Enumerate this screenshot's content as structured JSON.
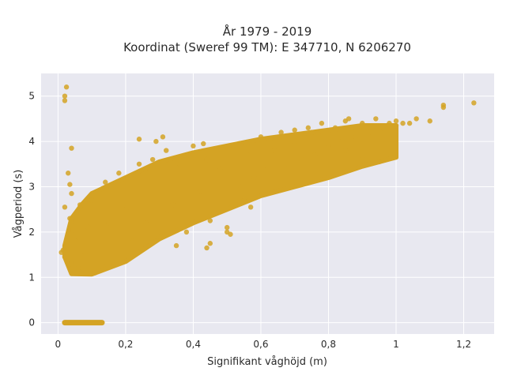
{
  "chart_data": {
    "type": "scatter",
    "title_lines": [
      "År 1979 - 2019",
      "Koordinat (Sweref 99 TM): E 347710, N 6206270"
    ],
    "xlabel": "Signifikant våghöjd (m)",
    "ylabel": "Vågperiod (s)",
    "xlim": [
      -0.05,
      1.29
    ],
    "ylim": [
      -0.25,
      5.5
    ],
    "x_ticks": [
      0,
      0.2,
      0.4,
      0.6,
      0.8,
      1,
      1.2
    ],
    "x_tick_labels": [
      "0",
      "0,2",
      "0,4",
      "0,6",
      "0,8",
      "1",
      "1,2"
    ],
    "y_ticks": [
      0,
      1,
      2,
      3,
      4,
      5
    ],
    "y_tick_labels": [
      "0",
      "1",
      "2",
      "3",
      "4",
      "5"
    ],
    "grid": true,
    "legend": "none",
    "colors": {
      "point": "#d4a324",
      "plot_bg": "#e8e8f0",
      "grid": "#ffffff",
      "text": "#2a2a2a"
    },
    "points": [
      [
        0.02,
        5.0
      ],
      [
        0.025,
        5.2
      ],
      [
        0.02,
        4.9
      ],
      [
        0.04,
        3.85
      ],
      [
        0.03,
        3.3
      ],
      [
        0.035,
        3.05
      ],
      [
        0.04,
        2.85
      ],
      [
        0.02,
        2.55
      ],
      [
        0.015,
        1.6
      ],
      [
        0.01,
        1.55
      ],
      [
        0.02,
        1.45
      ],
      [
        0.025,
        1.7
      ],
      [
        0.03,
        1.9
      ],
      [
        0.035,
        2.3
      ],
      [
        0.04,
        1.3
      ],
      [
        0.045,
        2.05
      ],
      [
        0.05,
        1.8
      ],
      [
        0.055,
        2.4
      ],
      [
        0.06,
        1.2
      ],
      [
        0.065,
        2.6
      ],
      [
        0.07,
        1.1
      ],
      [
        0.08,
        1.5
      ],
      [
        0.09,
        2.1
      ],
      [
        0.1,
        2.7
      ],
      [
        0.11,
        1.1
      ],
      [
        0.12,
        2.9
      ],
      [
        0.13,
        1.3
      ],
      [
        0.14,
        3.1
      ],
      [
        0.15,
        2.2
      ],
      [
        0.16,
        1.4
      ],
      [
        0.18,
        3.3
      ],
      [
        0.2,
        2.5
      ],
      [
        0.22,
        1.8
      ],
      [
        0.24,
        3.5
      ],
      [
        0.26,
        2.2
      ],
      [
        0.28,
        3.6
      ],
      [
        0.3,
        1.9
      ],
      [
        0.32,
        3.8
      ],
      [
        0.34,
        2.6
      ],
      [
        0.36,
        3.5
      ],
      [
        0.38,
        2.0
      ],
      [
        0.4,
        3.9
      ],
      [
        0.42,
        2.9
      ],
      [
        0.44,
        3.6
      ],
      [
        0.46,
        2.4
      ],
      [
        0.48,
        3.4
      ],
      [
        0.5,
        2.1
      ],
      [
        0.52,
        3.9
      ],
      [
        0.54,
        3.0
      ],
      [
        0.56,
        3.7
      ],
      [
        0.58,
        3.2
      ],
      [
        0.6,
        4.1
      ],
      [
        0.62,
        3.4
      ],
      [
        0.64,
        3.8
      ],
      [
        0.66,
        4.2
      ],
      [
        0.68,
        3.5
      ],
      [
        0.7,
        4.0
      ],
      [
        0.72,
        3.6
      ],
      [
        0.74,
        4.3
      ],
      [
        0.76,
        3.7
      ],
      [
        0.78,
        4.4
      ],
      [
        0.8,
        3.9
      ],
      [
        0.82,
        4.3
      ],
      [
        0.84,
        4.0
      ],
      [
        0.86,
        4.5
      ],
      [
        0.88,
        4.1
      ],
      [
        0.9,
        4.4
      ],
      [
        0.92,
        4.2
      ],
      [
        0.94,
        4.5
      ],
      [
        0.96,
        4.3
      ],
      [
        0.98,
        4.4
      ],
      [
        1.0,
        4.35
      ],
      [
        1.02,
        4.4
      ],
      [
        1.04,
        4.4
      ],
      [
        1.06,
        4.5
      ],
      [
        1.1,
        4.45
      ],
      [
        1.14,
        4.8
      ],
      [
        1.14,
        4.75
      ],
      [
        1.23,
        4.85
      ],
      [
        0.31,
        4.1
      ],
      [
        0.24,
        4.05
      ],
      [
        0.29,
        4.0
      ],
      [
        0.43,
        3.95
      ],
      [
        0.5,
        2.0
      ],
      [
        0.51,
        1.95
      ],
      [
        0.45,
        1.75
      ],
      [
        0.45,
        2.25
      ],
      [
        0.55,
        2.7
      ],
      [
        0.57,
        2.55
      ],
      [
        0.35,
        1.7
      ],
      [
        0.32,
        2.4
      ],
      [
        0.44,
        1.65
      ],
      [
        0.7,
        4.25
      ],
      [
        0.75,
        4.2
      ],
      [
        0.85,
        4.45
      ],
      [
        0.98,
        4.1
      ],
      [
        1.0,
        4.45
      ],
      [
        0.9,
        3.6
      ],
      [
        0.95,
        3.55
      ],
      [
        0.85,
        3.8
      ]
    ],
    "zero_band": {
      "x_start": 0.02,
      "x_end": 0.13,
      "y": 0
    },
    "dense_band": {
      "x_start": 0.02,
      "x_end": 1.0,
      "lower": [
        [
          0.02,
          1.45
        ],
        [
          0.04,
          1.08
        ],
        [
          0.1,
          1.07
        ],
        [
          0.2,
          1.35
        ],
        [
          0.3,
          1.85
        ],
        [
          0.4,
          2.2
        ],
        [
          0.5,
          2.5
        ],
        [
          0.6,
          2.8
        ],
        [
          0.7,
          3.0
        ],
        [
          0.8,
          3.2
        ],
        [
          0.9,
          3.45
        ],
        [
          1.0,
          3.65
        ]
      ],
      "upper": [
        [
          0.02,
          1.7
        ],
        [
          0.04,
          2.3
        ],
        [
          0.07,
          2.6
        ],
        [
          0.1,
          2.85
        ],
        [
          0.2,
          3.2
        ],
        [
          0.3,
          3.55
        ],
        [
          0.4,
          3.75
        ],
        [
          0.5,
          3.9
        ],
        [
          0.6,
          4.05
        ],
        [
          0.7,
          4.15
        ],
        [
          0.8,
          4.25
        ],
        [
          0.9,
          4.35
        ],
        [
          1.0,
          4.35
        ]
      ]
    }
  }
}
